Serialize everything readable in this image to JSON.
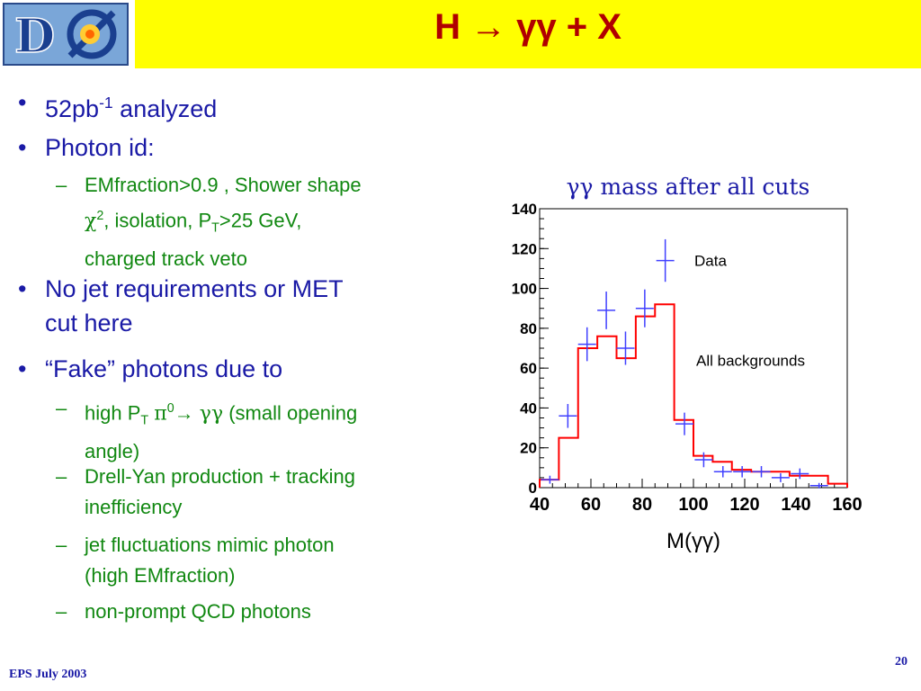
{
  "title": "H → γγ + X",
  "bullets": {
    "b1": {
      "main": "52pb",
      "sup": "-1",
      "rest": " analyzed"
    },
    "b2": "Photon id:",
    "b2_sub": {
      "line1": "EMfraction>0.9 , Shower shape",
      "chi": "χ",
      "chi_sup": "2",
      "line2a": ", isolation, P",
      "sub_t": "T",
      "line2b": ">25 GeV,",
      "line3": "charged track veto"
    },
    "b3": {
      "line1": "No jet requirements or MET",
      "line2": "cut here"
    },
    "b4": "“Fake” photons due to",
    "b4_subs": {
      "s1a": "high P",
      "s1_sub": "T",
      "s1_pi": "π",
      "s1_sup": "0",
      "s1_arrow": "→",
      "s1_gg": "γγ",
      "s1b": "  (small opening",
      "s1c": "angle)",
      "s2a": "Drell-Yan production + tracking",
      "s2b": "inefficiency",
      "s3a": "jet fluctuations mimic photon",
      "s3b": "(high EMfraction)",
      "s4": "non-prompt QCD photons"
    }
  },
  "chart_caption": "γγ mass after all cuts",
  "chart_data": {
    "type": "bar",
    "title": "",
    "xlabel": "M(γγ)",
    "ylabel": "",
    "xlim": [
      40,
      160
    ],
    "ylim": [
      0,
      140
    ],
    "xticks": [
      40,
      60,
      80,
      100,
      120,
      140,
      160
    ],
    "yticks": [
      0,
      20,
      40,
      60,
      80,
      100,
      120,
      140
    ],
    "bin_edges": [
      40,
      47.5,
      55,
      62.5,
      70,
      77.5,
      85,
      92.5,
      100,
      107.5,
      115,
      122.5,
      130,
      137.5,
      145,
      152.5,
      160
    ],
    "series": [
      {
        "name": "All backgrounds",
        "values": [
          4,
          25,
          70,
          76,
          65,
          86,
          92,
          34,
          16,
          13,
          9,
          8,
          8,
          6,
          6,
          2
        ],
        "color": "#ff0000"
      },
      {
        "name": "Data",
        "values": [
          4,
          36,
          72,
          89,
          70,
          90,
          114,
          32,
          14,
          8,
          8,
          8,
          5,
          7,
          1
        ],
        "x": [
          44,
          51,
          58.5,
          66,
          73.5,
          81,
          89,
          96.5,
          104,
          111.5,
          119,
          126.5,
          134,
          141.5,
          149
        ],
        "color": "#4040ff"
      }
    ],
    "legend": [
      {
        "label": "Data"
      },
      {
        "label": "All backgrounds"
      }
    ]
  },
  "footer": {
    "left": "EPS July 2003",
    "page": "20"
  }
}
